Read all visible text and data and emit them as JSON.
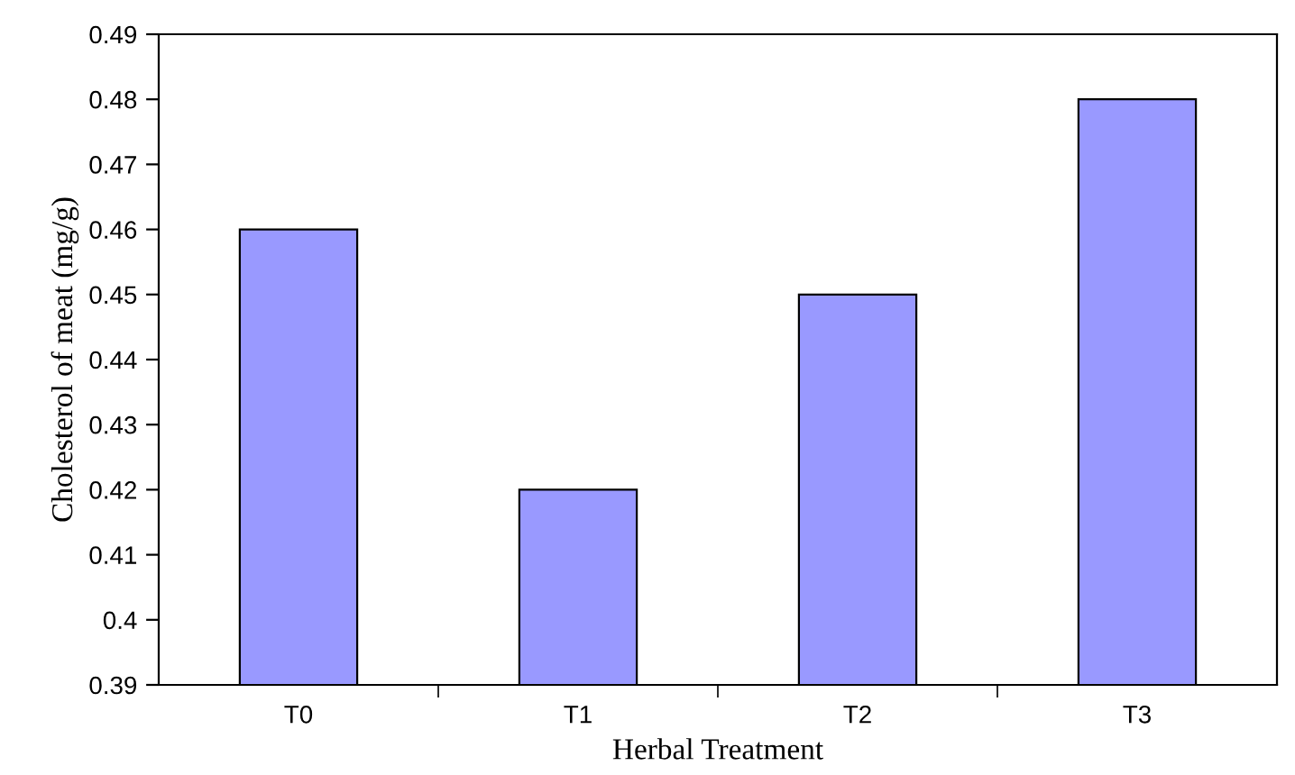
{
  "chart_data": {
    "type": "bar",
    "xlabel": "Herbal Treatment",
    "ylabel": "Cholesterol of meat (mg/g)",
    "categories": [
      "T0",
      "T1",
      "T2",
      "T3"
    ],
    "values": [
      0.46,
      0.42,
      0.45,
      0.48
    ],
    "color": "#9999ff",
    "ylim": [
      0.39,
      0.49
    ],
    "yticks": [
      0.39,
      0.4,
      0.41,
      0.42,
      0.43,
      0.44,
      0.45,
      0.46,
      0.47,
      0.48,
      0.49
    ],
    "grid": false,
    "legend": false
  }
}
